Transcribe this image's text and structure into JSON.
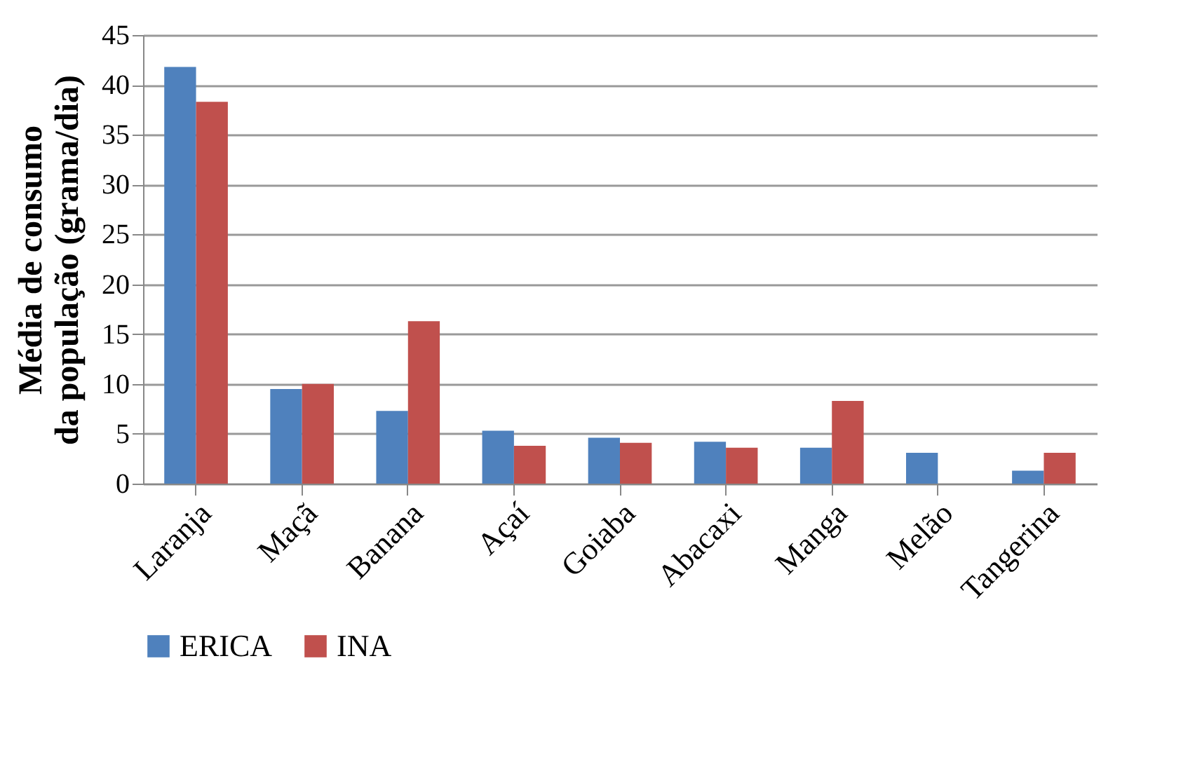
{
  "chart_data": {
    "type": "bar",
    "ylabel": "Média de consumo\nda população (grama/dia)",
    "categories": [
      "Laranja",
      "Maçã",
      "Banana",
      "Açaí",
      "Goiaba",
      "Abacaxi",
      "Manga",
      "Melão",
      "Tangerina"
    ],
    "series": [
      {
        "name": "ERICA",
        "color": "#4f81bd",
        "values": [
          41.8,
          9.5,
          7.3,
          5.3,
          4.6,
          4.2,
          3.6,
          3.1,
          1.3
        ]
      },
      {
        "name": "INA",
        "color": "#c0504d",
        "values": [
          38.3,
          10.0,
          16.3,
          3.8,
          4.1,
          3.6,
          8.3,
          0,
          3.1
        ]
      }
    ],
    "ylim": [
      0,
      45
    ],
    "yticks": [
      0,
      5,
      10,
      15,
      20,
      25,
      30,
      35,
      40,
      45
    ],
    "grid": "y",
    "legend": "bottom"
  }
}
